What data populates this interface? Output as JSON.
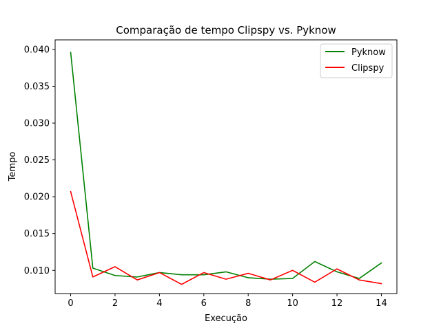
{
  "chart_data": {
    "type": "line",
    "title": "Comparação de tempo Clipspy vs. Pyknow",
    "xlabel": "Execução",
    "ylabel": "Tempo",
    "xlim": [
      -0.7,
      14.7
    ],
    "ylim": [
      0.00685,
      0.0413
    ],
    "xticks": [
      0,
      2,
      4,
      6,
      8,
      10,
      12,
      14
    ],
    "yticks": [
      0.01,
      0.015,
      0.02,
      0.025,
      0.03,
      0.035,
      0.04
    ],
    "ytick_labels": [
      "0.010",
      "0.015",
      "0.020",
      "0.025",
      "0.030",
      "0.035",
      "0.040"
    ],
    "grid": false,
    "legend_position": "top-right",
    "x": [
      0,
      1,
      2,
      3,
      4,
      5,
      6,
      7,
      8,
      9,
      10,
      11,
      12,
      13,
      14
    ],
    "series": [
      {
        "name": "Pyknow",
        "color": "#008000",
        "values": [
          0.0396,
          0.0103,
          0.0093,
          0.0091,
          0.0097,
          0.0094,
          0.0094,
          0.0098,
          0.009,
          0.0088,
          0.0089,
          0.0112,
          0.0098,
          0.0089,
          0.011
        ]
      },
      {
        "name": "Clipspy",
        "color": "#ff0000",
        "values": [
          0.0207,
          0.0091,
          0.0105,
          0.0087,
          0.0097,
          0.0081,
          0.0097,
          0.0088,
          0.0096,
          0.0087,
          0.01,
          0.0084,
          0.0102,
          0.0087,
          0.0082
        ]
      }
    ]
  }
}
